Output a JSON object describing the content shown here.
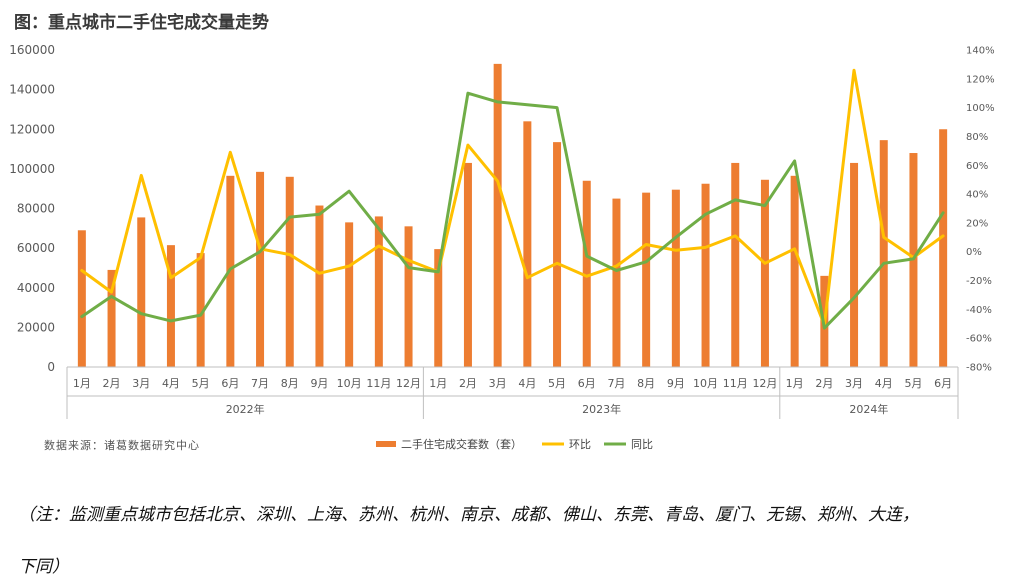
{
  "title": "图：重点城市二手住宅成交量走势",
  "source": "数据来源：诸葛数据研究中心",
  "note_line1": "（注：监测重点城市包括北京、深圳、上海、苏州、杭州、南京、成都、佛山、东莞、青岛、厦门、无锡、郑州、大连，",
  "note_line2": "下同）",
  "colors": {
    "bar": "#ED7D31",
    "hb": "#FFC000",
    "tb": "#70AD47",
    "axis": "#bfbfbf",
    "text": "#595959"
  },
  "chart_data": {
    "type": "bar+line",
    "months": [
      "1月",
      "2月",
      "3月",
      "4月",
      "5月",
      "6月",
      "7月",
      "8月",
      "9月",
      "10月",
      "11月",
      "12月",
      "1月",
      "2月",
      "3月",
      "4月",
      "5月",
      "6月",
      "7月",
      "8月",
      "9月",
      "10月",
      "11月",
      "12月",
      "1月",
      "2月",
      "3月",
      "4月",
      "5月",
      "6月"
    ],
    "years": [
      {
        "label": "2022年",
        "count": 12
      },
      {
        "label": "2023年",
        "count": 12
      },
      {
        "label": "2024年",
        "count": 6
      }
    ],
    "left_axis": {
      "min": 0,
      "max": 160000,
      "step": 20000,
      "ticks": [
        "0",
        "20000",
        "40000",
        "60000",
        "80000",
        "100000",
        "120000",
        "140000",
        "160000"
      ]
    },
    "right_axis": {
      "min": -80,
      "max": 140,
      "step": 20,
      "ticks": [
        "-80%",
        "-60%",
        "-40%",
        "-20%",
        "0%",
        "20%",
        "40%",
        "60%",
        "80%",
        "100%",
        "120%",
        "140%"
      ]
    },
    "series": [
      {
        "name": "二手住宅成交套数（套）",
        "kind": "bar",
        "axis": "left",
        "values": [
          69000,
          49000,
          75500,
          61500,
          57500,
          96500,
          98500,
          96000,
          81500,
          73000,
          76000,
          71000,
          59500,
          103000,
          153000,
          124000,
          113500,
          94000,
          85000,
          88000,
          89500,
          92500,
          103000,
          94500,
          96500,
          46000,
          103000,
          114500,
          108000,
          120000
        ]
      },
      {
        "name": "环比",
        "kind": "line",
        "axis": "right",
        "values": [
          -13,
          -28,
          53,
          -18,
          -4,
          69,
          2,
          -2,
          -15,
          -10,
          4,
          -6,
          -14,
          74,
          49,
          -18,
          -8,
          -17,
          -10,
          5,
          1,
          3,
          11,
          -8,
          2,
          -51,
          126,
          10,
          -4,
          11
        ]
      },
      {
        "name": "同比",
        "kind": "line",
        "axis": "right",
        "values": [
          -45,
          -31,
          -43,
          -48,
          -44,
          -12,
          0,
          24,
          26,
          42,
          16,
          -11,
          -14,
          110,
          104,
          102,
          100,
          -3,
          -13,
          -7,
          10,
          26,
          36,
          32,
          63,
          -53,
          -32,
          -8,
          -5,
          27
        ]
      }
    ]
  }
}
